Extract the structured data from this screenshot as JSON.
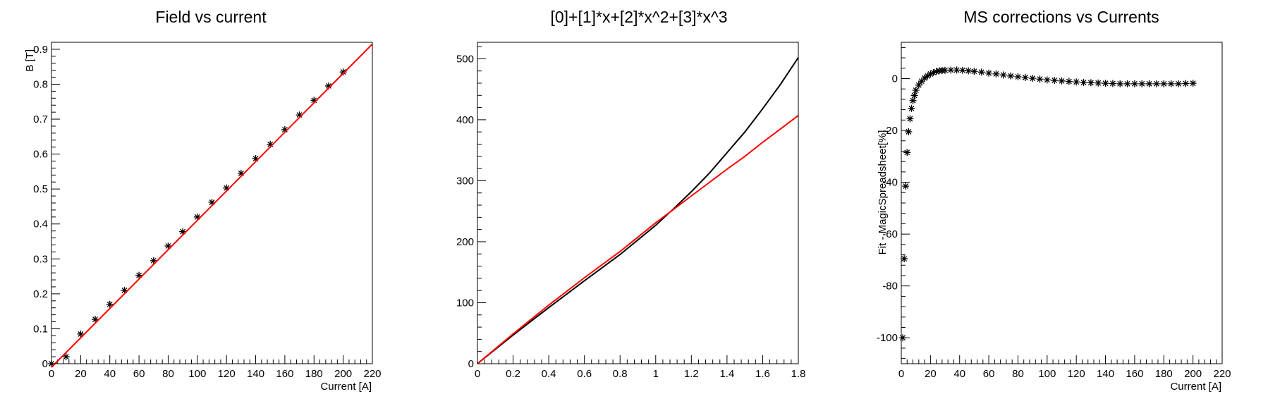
{
  "chart_data": [
    {
      "type": "scatter",
      "title": "Field vs current",
      "xlabel": "Current [A]",
      "ylabel": "B [T]",
      "xlim": [
        0,
        220
      ],
      "ylim": [
        0,
        0.92
      ],
      "x_ticks": [
        0,
        20,
        40,
        60,
        80,
        100,
        120,
        140,
        160,
        180,
        200,
        220
      ],
      "y_ticks": [
        0,
        0.1,
        0.2,
        0.3,
        0.4,
        0.5,
        0.6,
        0.7,
        0.8,
        0.9
      ],
      "grid": false,
      "series": [
        {
          "marker": "asterisk",
          "color": "#000000",
          "x": [
            0,
            10,
            20,
            30,
            40,
            50,
            60,
            70,
            80,
            90,
            100,
            110,
            120,
            130,
            140,
            150,
            160,
            170,
            180,
            190,
            200
          ],
          "y": [
            0.0,
            0.02,
            0.085,
            0.127,
            0.17,
            0.21,
            0.253,
            0.295,
            0.337,
            0.378,
            0.42,
            0.462,
            0.503,
            0.545,
            0.587,
            0.628,
            0.67,
            0.712,
            0.754,
            0.795,
            0.835
          ]
        },
        {
          "kind": "fit-line",
          "color": "#ff0000",
          "x": [
            0,
            220
          ],
          "y": [
            -0.01,
            0.915
          ]
        }
      ]
    },
    {
      "type": "line",
      "title": "[0]+[1]*x+[2]*x^2+[3]*x^3",
      "xlabel": "",
      "ylabel": "",
      "xlim": [
        0,
        1.8
      ],
      "ylim": [
        0,
        527
      ],
      "x_ticks": [
        0,
        0.2,
        0.4,
        0.6,
        0.8,
        1,
        1.2,
        1.4,
        1.6,
        1.8
      ],
      "y_ticks": [
        0,
        100,
        200,
        300,
        400,
        500
      ],
      "grid": false,
      "series": [
        {
          "color": "#000000",
          "x": [
            0,
            0.2,
            0.4,
            0.6,
            0.8,
            1.0,
            1.1,
            1.2,
            1.3,
            1.4,
            1.5,
            1.6,
            1.7,
            1.8
          ],
          "y": [
            0,
            47,
            92,
            136,
            179,
            227,
            254,
            282,
            312,
            346,
            380,
            418,
            458,
            502
          ]
        },
        {
          "color": "#ff0000",
          "x": [
            0,
            0.2,
            0.4,
            0.6,
            0.8,
            1.0,
            1.1,
            1.2,
            1.3,
            1.4,
            1.5,
            1.6,
            1.7,
            1.8
          ],
          "y": [
            0,
            49,
            96,
            141,
            184,
            231,
            253,
            275,
            297,
            319,
            340,
            363,
            385,
            407
          ]
        }
      ]
    },
    {
      "type": "scatter",
      "title": "MS corrections vs Currents",
      "xlabel": "Current [A]",
      "ylabel": "Fit - MagicSpreadsheet[%]",
      "xlim": [
        0,
        220
      ],
      "ylim": [
        -110,
        14
      ],
      "x_ticks": [
        0,
        20,
        40,
        60,
        80,
        100,
        120,
        140,
        160,
        180,
        200,
        220
      ],
      "y_ticks": [
        -100,
        -80,
        -60,
        -40,
        -20,
        0
      ],
      "grid": false,
      "series": [
        {
          "marker": "asterisk",
          "color": "#000000",
          "x": [
            1,
            2,
            3,
            4,
            5,
            6,
            7,
            8,
            9,
            10,
            12,
            14,
            16,
            18,
            20,
            22,
            24,
            26,
            28,
            30,
            34,
            38,
            42,
            46,
            50,
            55,
            60,
            65,
            70,
            75,
            80,
            85,
            90,
            95,
            100,
            105,
            110,
            115,
            120,
            125,
            130,
            135,
            140,
            145,
            150,
            155,
            160,
            165,
            170,
            175,
            180,
            185,
            190,
            195,
            200
          ],
          "y": [
            -100,
            -69.5,
            -41.5,
            -28.5,
            -20.5,
            -15.5,
            -11.5,
            -8.5,
            -6.5,
            -4.5,
            -2.5,
            -1.0,
            0.2,
            1.0,
            1.8,
            2.3,
            2.7,
            3.0,
            3.1,
            3.2,
            3.3,
            3.3,
            3.2,
            3.0,
            2.8,
            2.5,
            2.1,
            1.8,
            1.4,
            1.0,
            0.7,
            0.4,
            0.1,
            -0.2,
            -0.5,
            -0.7,
            -0.9,
            -1.1,
            -1.3,
            -1.5,
            -1.6,
            -1.7,
            -1.8,
            -1.9,
            -2.0,
            -2.0,
            -2.0,
            -2.0,
            -2.0,
            -2.0,
            -2.0,
            -2.0,
            -2.0,
            -1.9,
            -1.8
          ]
        }
      ]
    }
  ]
}
